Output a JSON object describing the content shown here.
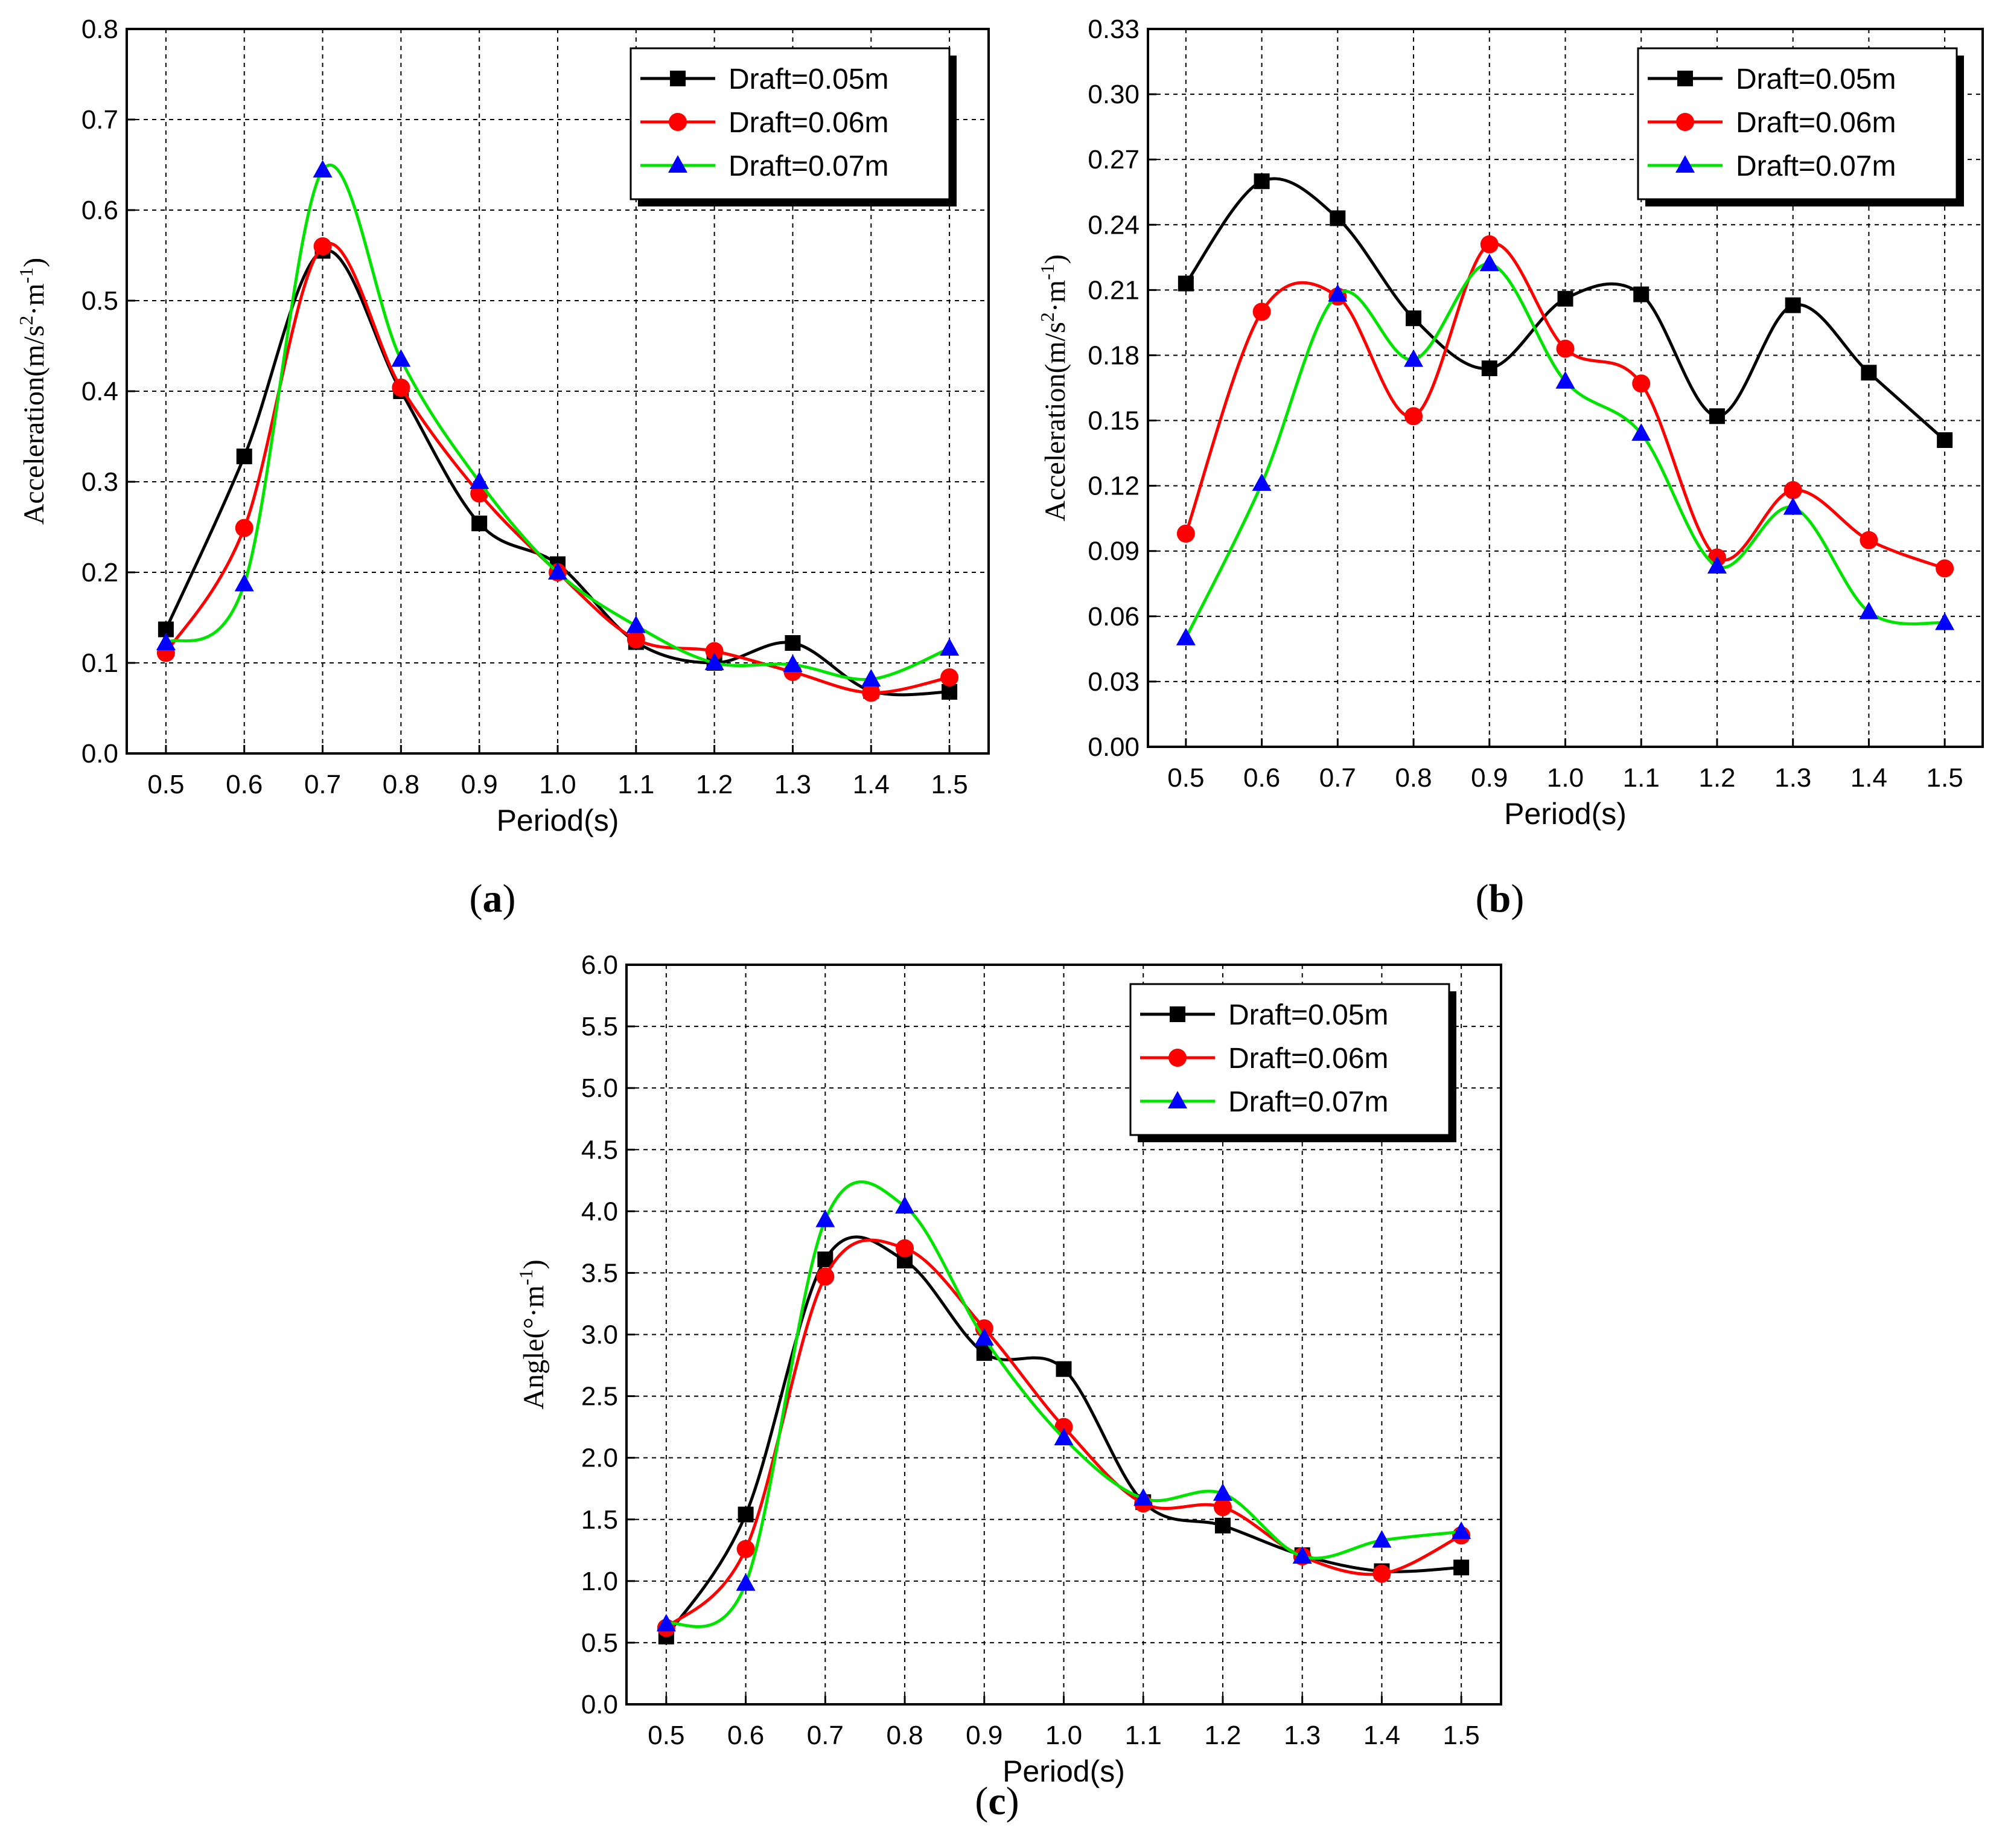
{
  "colors": {
    "draft_005": "#000000",
    "draft_006": "#ff0000",
    "draft_007": "#00e400",
    "triangle_fill": "#0000ff"
  },
  "chart_data": [
    {
      "id": "a",
      "caption_label": "a",
      "type": "line",
      "xlabel": "Period(s)",
      "ylabel_parts": [
        "Acceleration(m/s",
        "2",
        "·m",
        "-1",
        ")"
      ],
      "x_ticks": [
        "0.5",
        "0.6",
        "0.7",
        "0.8",
        "0.9",
        "1.0",
        "1.1",
        "1.2",
        "1.3",
        "1.4",
        "1.5"
      ],
      "x": [
        0.5,
        0.6,
        0.7,
        0.8,
        0.9,
        1.0,
        1.1,
        1.2,
        1.3,
        1.4,
        1.5
      ],
      "xlim": [
        0.45,
        1.55
      ],
      "ylim": [
        0,
        0.8
      ],
      "y_ticks": [
        "0.0",
        "0.1",
        "0.2",
        "0.3",
        "0.4",
        "0.5",
        "0.6",
        "0.7",
        "0.8"
      ],
      "legend_position": "top-right",
      "series": [
        {
          "name": "Draft=0.05m",
          "marker": "square",
          "values": [
            0.137,
            0.328,
            0.555,
            0.4,
            0.254,
            0.209,
            0.123,
            0.1,
            0.122,
            0.069,
            0.068
          ]
        },
        {
          "name": "Draft=0.06m",
          "marker": "circle",
          "values": [
            0.111,
            0.249,
            0.56,
            0.404,
            0.287,
            0.2,
            0.126,
            0.113,
            0.09,
            0.067,
            0.084
          ]
        },
        {
          "name": "Draft=0.07m",
          "marker": "triangle",
          "values": [
            0.122,
            0.187,
            0.644,
            0.435,
            0.3,
            0.2,
            0.141,
            0.1,
            0.098,
            0.082,
            0.116
          ]
        }
      ]
    },
    {
      "id": "b",
      "caption_label": "b",
      "type": "line",
      "xlabel": "Period(s)",
      "ylabel_parts": [
        "Acceleration(m/s",
        "2",
        "·m",
        "-1",
        ")"
      ],
      "x_ticks": [
        "0.5",
        "0.6",
        "0.7",
        "0.8",
        "0.9",
        "1.0",
        "1.1",
        "1.2",
        "1.3",
        "1.4",
        "1.5"
      ],
      "x": [
        0.5,
        0.6,
        0.7,
        0.8,
        0.9,
        1.0,
        1.1,
        1.2,
        1.3,
        1.4,
        1.5
      ],
      "xlim": [
        0.45,
        1.55
      ],
      "ylim": [
        0,
        0.33
      ],
      "y_ticks": [
        "0.00",
        "0.03",
        "0.06",
        "0.09",
        "0.12",
        "0.15",
        "0.18",
        "0.21",
        "0.24",
        "0.27",
        "0.30",
        "0.33"
      ],
      "legend_position": "top-right",
      "series": [
        {
          "name": "Draft=0.05m",
          "marker": "square",
          "values": [
            0.213,
            0.26,
            0.243,
            0.197,
            0.174,
            0.206,
            0.208,
            0.152,
            0.203,
            0.172,
            0.141
          ]
        },
        {
          "name": "Draft=0.06m",
          "marker": "circle",
          "values": [
            0.098,
            0.2,
            0.207,
            0.152,
            0.231,
            0.183,
            0.167,
            0.087,
            0.118,
            0.095,
            0.082
          ]
        },
        {
          "name": "Draft=0.07m",
          "marker": "triangle",
          "values": [
            0.05,
            0.121,
            0.208,
            0.178,
            0.222,
            0.168,
            0.144,
            0.083,
            0.11,
            0.062,
            0.057
          ]
        }
      ]
    },
    {
      "id": "c",
      "caption_label": "c",
      "type": "line",
      "xlabel": "Period(s)",
      "ylabel_parts": [
        "Angle(°·m",
        "-1",
        ")"
      ],
      "x_ticks": [
        "0.5",
        "0.6",
        "0.7",
        "0.8",
        "0.9",
        "1.0",
        "1.1",
        "1.2",
        "1.3",
        "1.4",
        "1.5"
      ],
      "x": [
        0.5,
        0.6,
        0.7,
        0.8,
        0.9,
        1.0,
        1.1,
        1.2,
        1.3,
        1.4,
        1.5
      ],
      "xlim": [
        0.45,
        1.55
      ],
      "ylim": [
        0,
        6.0
      ],
      "y_ticks": [
        "0.0",
        "0.5",
        "1.0",
        "1.5",
        "2.0",
        "2.5",
        "3.0",
        "3.5",
        "4.0",
        "4.5",
        "5.0",
        "5.5",
        "6.0"
      ],
      "legend_position": "top-right",
      "series": [
        {
          "name": "Draft=0.05m",
          "marker": "square",
          "values": [
            0.55,
            1.54,
            3.61,
            3.6,
            2.85,
            2.72,
            1.64,
            1.45,
            1.21,
            1.08,
            1.11
          ]
        },
        {
          "name": "Draft=0.06m",
          "marker": "circle",
          "values": [
            0.62,
            1.26,
            3.47,
            3.7,
            3.05,
            2.25,
            1.63,
            1.6,
            1.2,
            1.06,
            1.37
          ]
        },
        {
          "name": "Draft=0.07m",
          "marker": "triangle",
          "values": [
            0.65,
            0.98,
            3.93,
            4.04,
            2.97,
            2.16,
            1.67,
            1.71,
            1.2,
            1.33,
            1.4
          ]
        }
      ]
    }
  ]
}
